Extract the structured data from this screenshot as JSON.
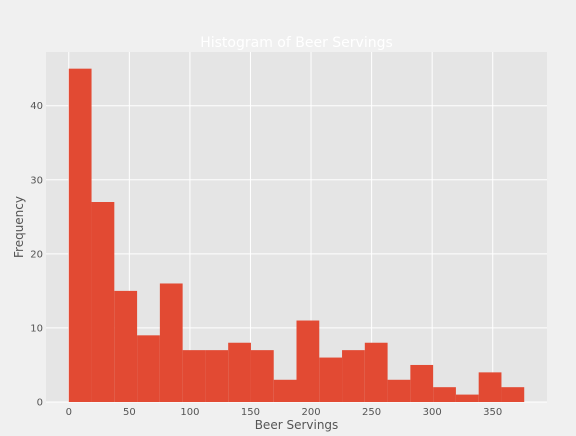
{
  "chart_data": {
    "type": "bar",
    "title": "Histogram of Beer Servings",
    "xlabel": "Beer Servings",
    "ylabel": "Frequency",
    "bin_edges": [
      0,
      18.8,
      37.6,
      56.4,
      75.2,
      94,
      112.8,
      131.6,
      150.4,
      169.2,
      188,
      206.8,
      225.6,
      244.4,
      263.2,
      282,
      300.8,
      319.6,
      338.4,
      357.2,
      376
    ],
    "values": [
      45,
      27,
      15,
      9,
      16,
      7,
      7,
      8,
      7,
      3,
      11,
      6,
      7,
      8,
      3,
      5,
      2,
      1,
      4,
      2
    ],
    "xlim": [
      -18.8,
      394.8
    ],
    "ylim": [
      0,
      47.25
    ],
    "xticks": [
      "0",
      "50",
      "100",
      "150",
      "200",
      "250",
      "300",
      "350"
    ],
    "yticks": [
      "0",
      "10",
      "20",
      "30",
      "40"
    ],
    "grid": true,
    "colors": {
      "bar": "#e24a33",
      "plot_background": "#e5e5e5",
      "figure_background": "#f0f0f0",
      "grid": "#ffffff",
      "tick_text": "#555555",
      "title_text": "#ffffff"
    }
  }
}
